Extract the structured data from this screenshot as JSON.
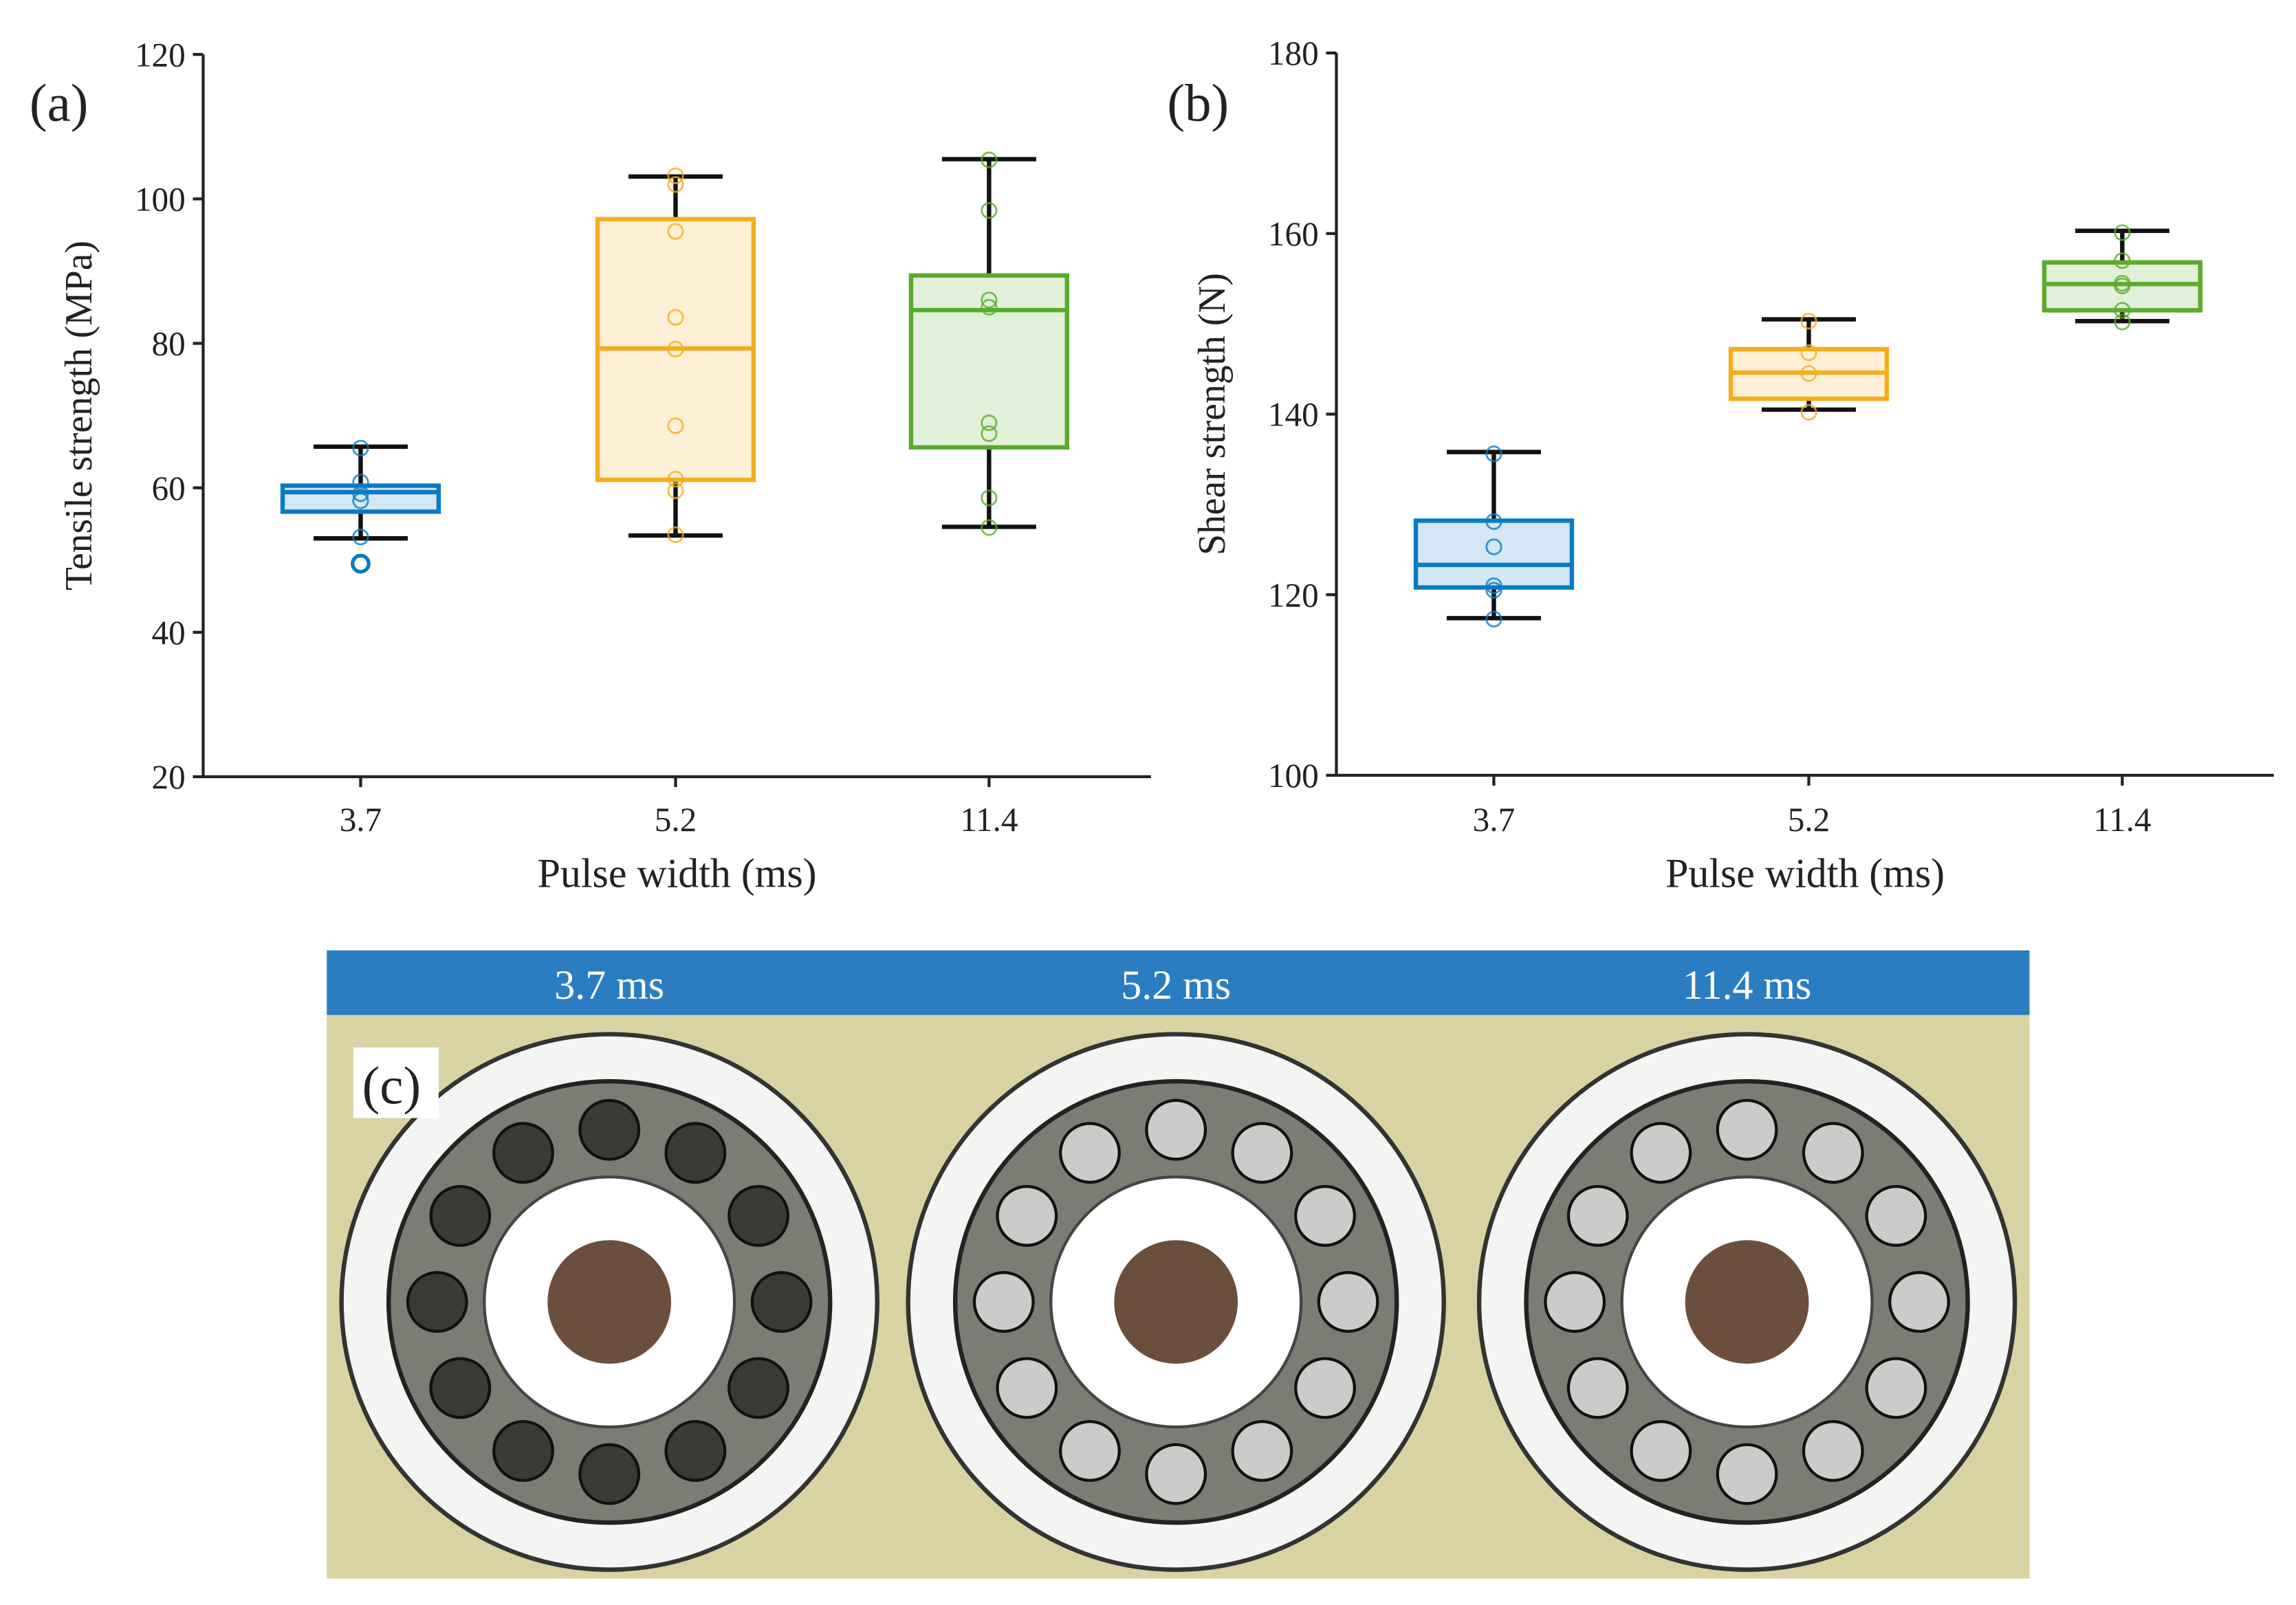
{
  "chart_data": [
    {
      "type": "box",
      "panel_label": "(a)",
      "y_label": "Tensile strength (MPa)",
      "x_label": "Pulse width (ms)",
      "categories": [
        "3.7",
        "5.2",
        "11.4"
      ],
      "ylim": [
        20,
        120
      ],
      "yticks": [
        20,
        40,
        60,
        80,
        100,
        120
      ],
      "boxes": [
        {
          "color": "#0a7bc2",
          "low": 53,
          "q1": 56.7,
          "median": 59.4,
          "q3": 60.3,
          "high": 65.7,
          "outliers": [
            49.5
          ],
          "points": [
            65.5,
            60.8,
            59.2,
            58.2,
            53.2,
            49.5
          ]
        },
        {
          "color": "#f5ad1e",
          "low": 53.4,
          "q1": 61.1,
          "median": 79.3,
          "q3": 97.2,
          "high": 103.1,
          "outliers": [],
          "points": [
            103.2,
            102,
            95.5,
            83.6,
            79.2,
            68.6,
            61.2,
            59.6,
            53.5
          ]
        },
        {
          "color": "#5aab2c",
          "low": 54.6,
          "q1": 65.6,
          "median": 84.6,
          "q3": 89.4,
          "high": 105.5,
          "outliers": [],
          "points": [
            105.4,
            98.4,
            86,
            85,
            69,
            67.5,
            58.6,
            54.5
          ]
        }
      ]
    },
    {
      "type": "box",
      "panel_label": "(b)",
      "y_label": "Shear strength (N)",
      "x_label": "Pulse width (ms)",
      "categories": [
        "3.7",
        "5.2",
        "11.4"
      ],
      "ylim": [
        100,
        180
      ],
      "yticks": [
        100,
        120,
        140,
        160,
        180
      ],
      "boxes": [
        {
          "color": "#0a7bc2",
          "low": 117.4,
          "q1": 120.8,
          "median": 123.3,
          "q3": 128.2,
          "high": 135.8,
          "outliers": [],
          "points": [
            135.6,
            128.1,
            125.3,
            121,
            120.5,
            117.3
          ]
        },
        {
          "color": "#f5ad1e",
          "low": 140.5,
          "q1": 141.7,
          "median": 144.6,
          "q3": 147.2,
          "high": 150.5,
          "outliers": [],
          "points": [
            150.3,
            146.8,
            144.5,
            140.2
          ]
        },
        {
          "color": "#5aab2c",
          "low": 150.3,
          "q1": 151.5,
          "median": 154.4,
          "q3": 156.8,
          "high": 160.3,
          "outliers": [],
          "points": [
            160.1,
            157,
            154.5,
            154.2,
            151.5,
            150.2
          ]
        }
      ]
    }
  ],
  "photo_panel": {
    "label": "(c)",
    "captions": [
      "3.7 ms",
      "5.2 ms",
      "11.4 ms"
    ]
  }
}
